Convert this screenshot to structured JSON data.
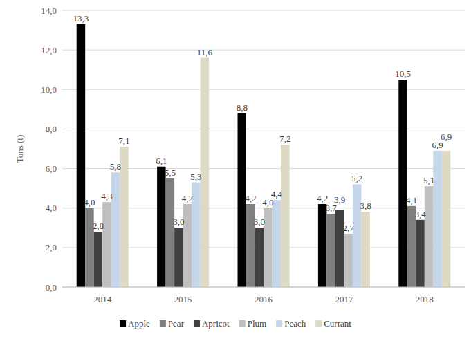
{
  "chart_data": {
    "type": "bar",
    "y_label": "Tons (t)",
    "categories": [
      "2014",
      "2015",
      "2016",
      "2017",
      "2018"
    ],
    "series": [
      {
        "name": "Apple",
        "color": "#000000",
        "values": [
          13.3,
          6.1,
          8.8,
          4.2,
          10.5
        ],
        "value_labels": [
          "13,3",
          "6,1",
          "8,8",
          "4,2",
          "10,5"
        ]
      },
      {
        "name": "Pear",
        "color": "#7f7f7f",
        "values": [
          4.0,
          5.5,
          4.2,
          3.7,
          4.1
        ],
        "value_labels": [
          "4,0",
          "5,5",
          "4,2",
          "3,7",
          "4,1"
        ]
      },
      {
        "name": "Apricot",
        "color": "#404040",
        "values": [
          2.8,
          3.0,
          3.0,
          3.9,
          3.4
        ],
        "value_labels": [
          "2,8",
          "3,0",
          "3,0",
          "3,9",
          "3,4"
        ]
      },
      {
        "name": "Plum",
        "color": "#bfbfbf",
        "values": [
          4.3,
          4.2,
          4.0,
          2.7,
          5.1
        ],
        "value_labels": [
          "4,3",
          "4,2",
          "4,0",
          "2,7",
          "5,1"
        ]
      },
      {
        "name": "Peach",
        "color": "#c5d5ea",
        "values": [
          5.8,
          5.3,
          4.4,
          5.2,
          6.9
        ],
        "value_labels": [
          "5,8",
          "5,3",
          "4,4",
          "5,2",
          "6,9"
        ]
      },
      {
        "name": "Currant",
        "color": "#ddd9c3",
        "values": [
          7.1,
          11.6,
          7.2,
          3.8,
          6.9
        ],
        "value_labels": [
          "7,1",
          "11,6",
          "7,2",
          "3,8",
          "6,9"
        ]
      }
    ],
    "ylim": [
      0,
      14
    ],
    "yticks": [
      {
        "value": 0,
        "label": "0,0"
      },
      {
        "value": 2,
        "label": "2,0"
      },
      {
        "value": 4,
        "label": "4,0"
      },
      {
        "value": 6,
        "label": "6,0"
      },
      {
        "value": 8,
        "label": "8,0"
      },
      {
        "value": 10,
        "label": "10,0"
      },
      {
        "value": 12,
        "label": "12,0"
      },
      {
        "value": 14,
        "label": "14,0"
      }
    ],
    "grid": true,
    "data_labels": true,
    "legend": "bottom"
  }
}
